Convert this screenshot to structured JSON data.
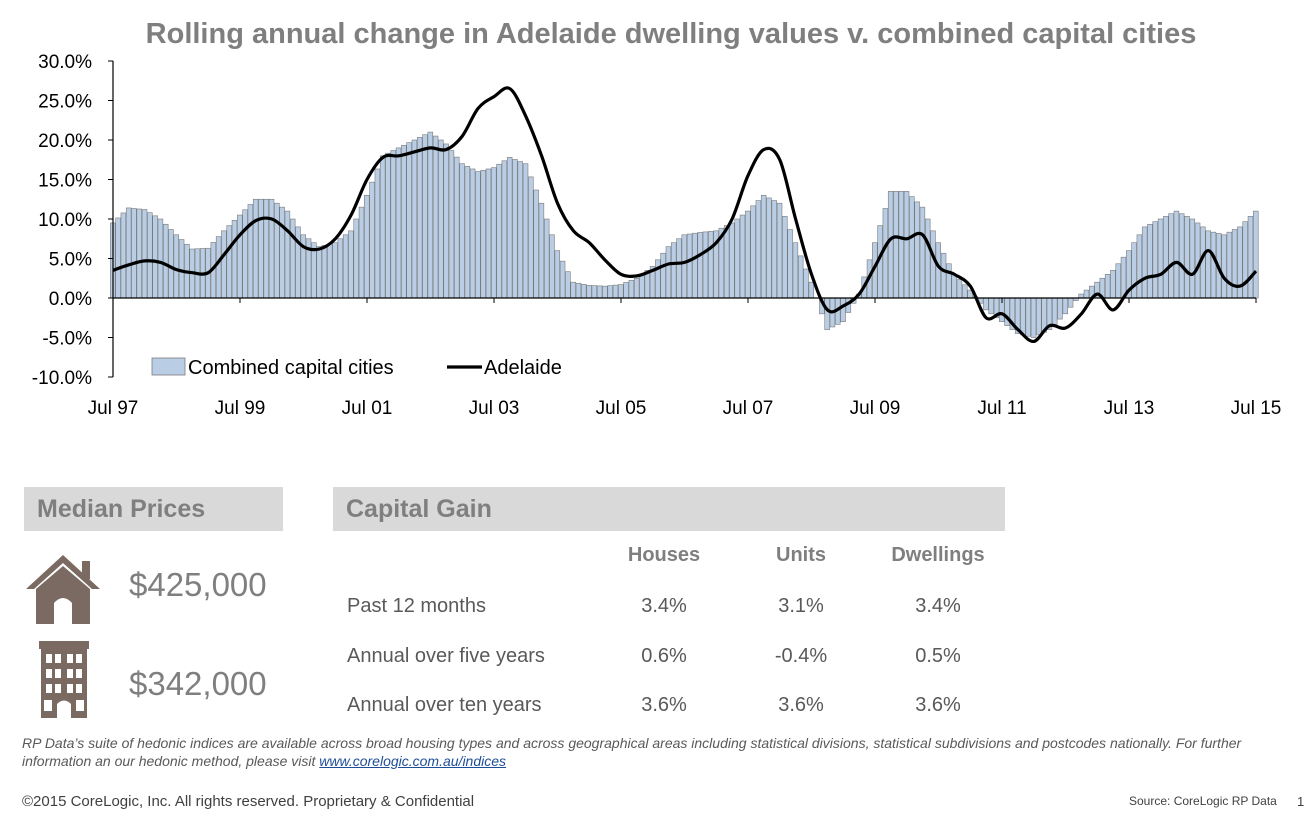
{
  "chart_data": {
    "type": "bar",
    "title": "Rolling annual change in Adelaide dwelling values v. combined capital cities",
    "xlabel": "",
    "ylabel": "",
    "ylim": [
      -10,
      30
    ],
    "y_ticks": [
      "30.0%",
      "25.0%",
      "20.0%",
      "15.0%",
      "10.0%",
      "5.0%",
      "0.0%",
      "-5.0%",
      "-10.0%"
    ],
    "x_ticks": [
      "Jul 97",
      "Jul 99",
      "Jul 01",
      "Jul 03",
      "Jul 05",
      "Jul 07",
      "Jul 09",
      "Jul 11",
      "Jul 13",
      "Jul 15"
    ],
    "grid": false,
    "legend_position": "bottom-left",
    "series": [
      {
        "name": "Combined capital cities",
        "kind": "bar",
        "color": "#b9cde5",
        "edge_color": "#7a7a7a",
        "points": [
          [
            "1997-07",
            9.5
          ],
          [
            "1997-10",
            11.4
          ],
          [
            "1998-01",
            11.2
          ],
          [
            "1998-04",
            10.0
          ],
          [
            "1998-07",
            8.0
          ],
          [
            "1998-10",
            6.2
          ],
          [
            "1999-01",
            6.3
          ],
          [
            "1999-04",
            8.5
          ],
          [
            "1999-07",
            10.5
          ],
          [
            "1999-10",
            12.5
          ],
          [
            "2000-01",
            12.5
          ],
          [
            "2000-04",
            11.0
          ],
          [
            "2000-07",
            8.0
          ],
          [
            "2000-10",
            6.5
          ],
          [
            "2001-01",
            7.0
          ],
          [
            "2001-04",
            8.5
          ],
          [
            "2001-07",
            13.0
          ],
          [
            "2001-10",
            18.0
          ],
          [
            "2002-01",
            19.0
          ],
          [
            "2002-04",
            20.0
          ],
          [
            "2002-07",
            21.0
          ],
          [
            "2002-10",
            19.5
          ],
          [
            "2003-01",
            17.0
          ],
          [
            "2003-04",
            16.0
          ],
          [
            "2003-07",
            16.5
          ],
          [
            "2003-10",
            17.8
          ],
          [
            "2004-01",
            17.0
          ],
          [
            "2004-04",
            12.0
          ],
          [
            "2004-07",
            6.0
          ],
          [
            "2004-10",
            2.0
          ],
          [
            "2005-01",
            1.6
          ],
          [
            "2005-04",
            1.5
          ],
          [
            "2005-07",
            1.7
          ],
          [
            "2005-10",
            2.5
          ],
          [
            "2006-01",
            4.0
          ],
          [
            "2006-04",
            6.5
          ],
          [
            "2006-07",
            8.0
          ],
          [
            "2006-10",
            8.3
          ],
          [
            "2007-01",
            8.5
          ],
          [
            "2007-04",
            9.5
          ],
          [
            "2007-07",
            11.0
          ],
          [
            "2007-10",
            13.0
          ],
          [
            "2008-01",
            12.0
          ],
          [
            "2008-04",
            7.0
          ],
          [
            "2008-07",
            2.0
          ],
          [
            "2008-10",
            -4.0
          ],
          [
            "2009-01",
            -3.0
          ],
          [
            "2009-04",
            0.5
          ],
          [
            "2009-07",
            7.0
          ],
          [
            "2009-10",
            13.5
          ],
          [
            "2010-01",
            13.5
          ],
          [
            "2010-04",
            11.5
          ],
          [
            "2010-07",
            7.0
          ],
          [
            "2010-10",
            3.0
          ],
          [
            "2011-01",
            1.0
          ],
          [
            "2011-04",
            -1.5
          ],
          [
            "2011-07",
            -3.0
          ],
          [
            "2011-10",
            -4.5
          ],
          [
            "2012-01",
            -5.0
          ],
          [
            "2012-04",
            -4.0
          ],
          [
            "2012-07",
            -2.0
          ],
          [
            "2012-10",
            0.5
          ],
          [
            "2013-01",
            2.0
          ],
          [
            "2013-04",
            3.5
          ],
          [
            "2013-07",
            6.0
          ],
          [
            "2013-10",
            9.0
          ],
          [
            "2014-01",
            10.0
          ],
          [
            "2014-04",
            11.0
          ],
          [
            "2014-07",
            10.0
          ],
          [
            "2014-10",
            8.5
          ],
          [
            "2015-01",
            8.0
          ],
          [
            "2015-04",
            9.0
          ],
          [
            "2015-07",
            11.0
          ]
        ]
      },
      {
        "name": "Adelaide",
        "kind": "line",
        "color": "#000000",
        "points": [
          [
            "1997-07",
            3.5
          ],
          [
            "1997-10",
            4.2
          ],
          [
            "1998-01",
            4.7
          ],
          [
            "1998-04",
            4.5
          ],
          [
            "1998-07",
            3.6
          ],
          [
            "1998-10",
            3.2
          ],
          [
            "1999-01",
            3.2
          ],
          [
            "1999-04",
            5.5
          ],
          [
            "1999-07",
            8.0
          ],
          [
            "1999-10",
            9.8
          ],
          [
            "2000-01",
            10.0
          ],
          [
            "2000-04",
            8.5
          ],
          [
            "2000-07",
            6.5
          ],
          [
            "2000-10",
            6.2
          ],
          [
            "2001-01",
            7.5
          ],
          [
            "2001-04",
            10.5
          ],
          [
            "2001-07",
            15.0
          ],
          [
            "2001-10",
            17.8
          ],
          [
            "2002-01",
            18.0
          ],
          [
            "2002-04",
            18.5
          ],
          [
            "2002-07",
            19.0
          ],
          [
            "2002-10",
            18.8
          ],
          [
            "2003-01",
            20.5
          ],
          [
            "2003-04",
            24.0
          ],
          [
            "2003-07",
            25.5
          ],
          [
            "2003-10",
            26.5
          ],
          [
            "2004-01",
            23.0
          ],
          [
            "2004-04",
            18.0
          ],
          [
            "2004-07",
            12.0
          ],
          [
            "2004-10",
            8.5
          ],
          [
            "2005-01",
            7.0
          ],
          [
            "2005-04",
            4.8
          ],
          [
            "2005-07",
            3.0
          ],
          [
            "2005-10",
            2.8
          ],
          [
            "2006-01",
            3.5
          ],
          [
            "2006-04",
            4.3
          ],
          [
            "2006-07",
            4.5
          ],
          [
            "2006-10",
            5.5
          ],
          [
            "2007-01",
            7.0
          ],
          [
            "2007-04",
            10.0
          ],
          [
            "2007-07",
            15.5
          ],
          [
            "2007-10",
            18.8
          ],
          [
            "2008-01",
            17.5
          ],
          [
            "2008-04",
            10.0
          ],
          [
            "2008-07",
            3.0
          ],
          [
            "2008-10",
            -1.5
          ],
          [
            "2009-01",
            -1.0
          ],
          [
            "2009-04",
            0.5
          ],
          [
            "2009-07",
            4.0
          ],
          [
            "2009-10",
            7.5
          ],
          [
            "2010-01",
            7.5
          ],
          [
            "2010-04",
            8.0
          ],
          [
            "2010-07",
            4.0
          ],
          [
            "2010-10",
            3.0
          ],
          [
            "2011-01",
            1.5
          ],
          [
            "2011-04",
            -2.5
          ],
          [
            "2011-07",
            -2.0
          ],
          [
            "2011-10",
            -4.0
          ],
          [
            "2012-01",
            -5.5
          ],
          [
            "2012-04",
            -3.5
          ],
          [
            "2012-07",
            -3.8
          ],
          [
            "2012-10",
            -2.0
          ],
          [
            "2013-01",
            0.5
          ],
          [
            "2013-04",
            -1.5
          ],
          [
            "2013-07",
            1.0
          ],
          [
            "2013-10",
            2.5
          ],
          [
            "2014-01",
            3.0
          ],
          [
            "2014-04",
            4.5
          ],
          [
            "2014-07",
            3.0
          ],
          [
            "2014-10",
            6.0
          ],
          [
            "2015-01",
            2.5
          ],
          [
            "2015-04",
            1.5
          ],
          [
            "2015-07",
            3.4
          ]
        ]
      }
    ]
  },
  "median_prices": {
    "header": "Median Prices",
    "house_price": "$425,000",
    "unit_price": "$342,000",
    "house_icon": "house-icon",
    "unit_icon": "apartment-building-icon"
  },
  "capital_gain": {
    "header": "Capital Gain",
    "columns": [
      "Houses",
      "Units",
      "Dwellings"
    ],
    "rows": [
      {
        "label": "Past 12 months",
        "values": [
          "3.4%",
          "3.1%",
          "3.4%"
        ]
      },
      {
        "label": "Annual over five years",
        "values": [
          "0.6%",
          "-0.4%",
          "0.5%"
        ]
      },
      {
        "label": "Annual over ten years",
        "values": [
          "3.6%",
          "3.6%",
          "3.6%"
        ]
      }
    ]
  },
  "footer": {
    "note": "RP Data’s suite of hedonic indices are available across broad housing types and across geographical areas including statistical divisions, statistical subdivisions and postcodes nationally.  For further information an our hedonic method, please visit ",
    "link_text": "www.corelogic.com.au/indices",
    "copyright": "©2015 CoreLogic, Inc. All rights reserved. Proprietary & Confidential",
    "source": "Source: CoreLogic RP Data",
    "page_number": "1"
  },
  "colors": {
    "header_bg": "#d9d9d9",
    "header_text": "#7f7f7f",
    "icon_color": "#7a6a62"
  }
}
